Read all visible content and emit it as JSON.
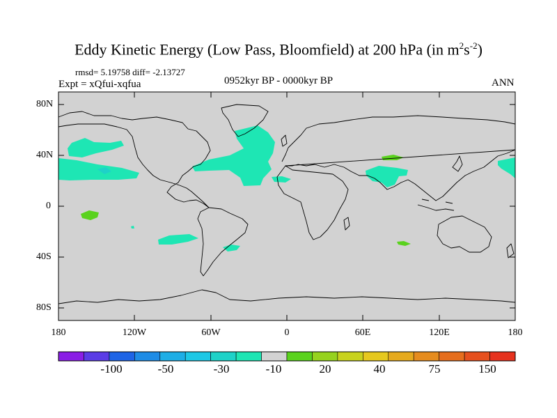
{
  "title": {
    "main": "Eddy Kinetic Energy (Low Pass, Bloomfield) at 200 hPa (in m",
    "sup1": "2",
    "mid": "s",
    "sup2": "-2",
    "close": ")"
  },
  "stats": "rmsd= 5.19758 diff= -2.13727",
  "experiment": "Expt = xQfui-xqfua",
  "period": "0952kyr BP - 0000kyr BP",
  "season": "ANN",
  "lat_labels": [
    "80N",
    "40N",
    "0",
    "40S",
    "80S"
  ],
  "lon_labels": [
    "180",
    "120W",
    "60W",
    "0",
    "60E",
    "120E",
    "180"
  ],
  "colorbar": {
    "labels": [
      "-100",
      "-50",
      "-30",
      "-10",
      "20",
      "40",
      "75",
      "150"
    ],
    "colors": [
      "#8a1ee6",
      "#5a3ce6",
      "#1e64e6",
      "#1e8ce6",
      "#1eaee6",
      "#1ec8e6",
      "#1ed2c8",
      "#1ee6b4",
      "#d2d2d2",
      "#5ad21e",
      "#96d21e",
      "#c8d21e",
      "#e6c81e",
      "#e6aa1e",
      "#e68c1e",
      "#e66e1e",
      "#e6501e",
      "#e6321e"
    ]
  },
  "colors": {
    "land_ocean": "#d2d2d2",
    "cyan": "#1ee6b4",
    "light_blue": "#1ed2c8",
    "green": "#5ad21e"
  }
}
